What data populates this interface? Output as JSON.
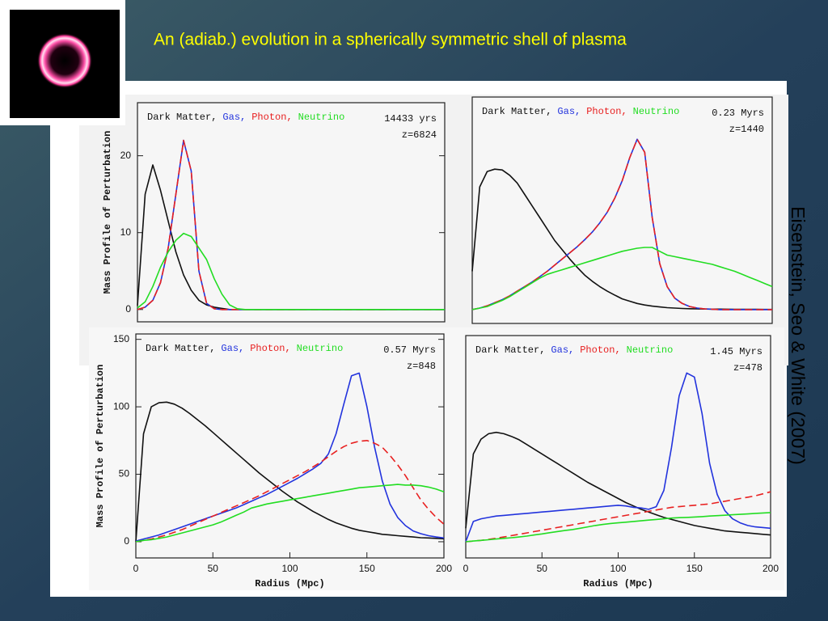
{
  "slide_title": "An (adiab.) evolution in a spherically symmetric shell of plasma",
  "citation": "Eisenstein, Seo & White (2007)",
  "chart_data": [
    {
      "type": "line",
      "annotations": [
        "14433 yrs",
        "z=6824"
      ],
      "ylabel": "Mass Profile of Perturbation",
      "xlim": [
        0,
        200
      ],
      "ylim": [
        -1.6,
        26.9
      ],
      "yticks": [
        0,
        10,
        20
      ],
      "x": [
        0,
        5,
        10,
        15,
        20,
        25,
        30,
        35,
        40,
        45,
        50,
        55,
        60,
        65,
        70,
        75,
        80,
        85,
        90,
        95,
        100,
        105,
        110,
        115,
        120,
        125,
        130,
        135,
        140,
        145,
        150,
        155,
        160,
        165,
        170,
        175,
        180,
        185,
        190,
        195,
        200
      ],
      "series": [
        {
          "name": "Dark Matter,",
          "color": "#111111",
          "values": [
            0.5,
            15,
            18.8,
            15.5,
            11.5,
            7.5,
            4.5,
            2.5,
            1.2,
            0.6,
            0.3,
            0.15,
            0,
            0,
            0,
            0,
            0,
            0,
            0,
            0,
            0,
            0,
            0,
            0,
            0,
            0,
            0,
            0,
            0,
            0,
            0,
            0,
            0,
            0,
            0,
            0,
            0,
            0,
            0,
            0,
            0
          ]
        },
        {
          "name": "Gas,",
          "color": "#2233dd",
          "values": [
            0,
            0.3,
            1.2,
            3.5,
            8,
            15,
            22,
            18,
            5,
            0.8,
            0.1,
            0,
            0,
            0,
            0,
            0,
            0,
            0,
            0,
            0,
            0,
            0,
            0,
            0,
            0,
            0,
            0,
            0,
            0,
            0,
            0,
            0,
            0,
            0,
            0,
            0,
            0,
            0,
            0,
            0,
            0
          ]
        },
        {
          "name": "Photon,",
          "color": "#e82020",
          "dashed": true,
          "values": [
            0,
            0.3,
            1.2,
            3.5,
            8,
            15,
            22,
            18,
            5,
            0.8,
            0.1,
            0,
            0,
            0,
            0,
            0,
            0,
            0,
            0,
            0,
            0,
            0,
            0,
            0,
            0,
            0,
            0,
            0,
            0,
            0,
            0,
            0,
            0,
            0,
            0,
            0,
            0,
            0,
            0,
            0,
            0
          ]
        },
        {
          "name": "Neutrino",
          "color": "#22dd22",
          "values": [
            0.2,
            1,
            3,
            5.5,
            7.5,
            9,
            9.9,
            9.5,
            8,
            6.5,
            4,
            2,
            0.6,
            0.1,
            0,
            0,
            0,
            0,
            0,
            0,
            0,
            0,
            0,
            0,
            0,
            0,
            0,
            0,
            0,
            0,
            0,
            0,
            0,
            0,
            0,
            0,
            0,
            0,
            0,
            0,
            0
          ]
        }
      ]
    },
    {
      "type": "line",
      "annotations": [
        "0.23 Myrs",
        "z=1440"
      ],
      "xlim": [
        0,
        200
      ],
      "ylim": [
        -1.8,
        27.7
      ],
      "x": [
        0,
        5,
        10,
        15,
        20,
        25,
        30,
        35,
        40,
        45,
        50,
        55,
        60,
        65,
        70,
        75,
        80,
        85,
        90,
        95,
        100,
        105,
        110,
        115,
        120,
        125,
        130,
        135,
        140,
        145,
        150,
        155,
        160,
        165,
        170,
        175,
        180,
        185,
        190,
        195,
        200
      ],
      "series": [
        {
          "name": "Dark Matter,",
          "color": "#111111",
          "values": [
            5,
            16,
            18,
            18.3,
            18.2,
            17.5,
            16.5,
            15,
            13.5,
            12,
            10.5,
            9,
            7.8,
            6.6,
            5.5,
            4.5,
            3.7,
            3,
            2.4,
            1.9,
            1.4,
            1.1,
            0.8,
            0.6,
            0.45,
            0.35,
            0.25,
            0.2,
            0.15,
            0.12,
            0.1,
            0.08,
            0.07,
            0.06,
            0.05,
            0.04,
            0.04,
            0.03,
            0.03,
            0.02,
            0.02
          ]
        },
        {
          "name": "Gas,",
          "color": "#2233dd",
          "values": [
            0,
            0.2,
            0.5,
            0.9,
            1.3,
            1.8,
            2.4,
            3,
            3.6,
            4.3,
            5,
            5.8,
            6.6,
            7.4,
            8.2,
            9.1,
            10.1,
            11.3,
            12.7,
            14.5,
            16.8,
            19.8,
            22.2,
            20.5,
            12,
            6,
            3,
            1.5,
            0.8,
            0.4,
            0.2,
            0.1,
            0.05,
            0,
            0,
            0,
            0,
            0,
            0,
            0,
            0
          ]
        },
        {
          "name": "Photon,",
          "color": "#e82020",
          "dashed": true,
          "values": [
            0,
            0.2,
            0.5,
            0.9,
            1.3,
            1.8,
            2.4,
            3,
            3.6,
            4.3,
            5,
            5.8,
            6.6,
            7.4,
            8.2,
            9.1,
            10.1,
            11.3,
            12.7,
            14.5,
            16.8,
            19.8,
            22.2,
            20.5,
            12,
            6,
            3,
            1.5,
            0.8,
            0.4,
            0.2,
            0.1,
            0.05,
            0,
            0,
            0,
            0,
            0,
            0,
            0,
            0
          ]
        },
        {
          "name": "Neutrino",
          "color": "#22dd22",
          "values": [
            0,
            0.2,
            0.4,
            0.8,
            1.2,
            1.7,
            2.3,
            2.9,
            3.5,
            4.1,
            4.6,
            4.9,
            5.2,
            5.5,
            5.8,
            6.1,
            6.4,
            6.7,
            7,
            7.3,
            7.6,
            7.8,
            8,
            8.1,
            8.1,
            7.6,
            7.1,
            6.9,
            6.7,
            6.5,
            6.3,
            6.1,
            5.9,
            5.6,
            5.3,
            5,
            4.6,
            4.2,
            3.8,
            3.4,
            3
          ]
        }
      ]
    },
    {
      "type": "line",
      "annotations": [
        "0.57 Myrs",
        "z=848"
      ],
      "ylabel": "Mass Profile of Perturbation",
      "xlabel": "Radius (Mpc)",
      "xlim": [
        0,
        200
      ],
      "ylim": [
        -12,
        154
      ],
      "xticks": [
        0,
        50,
        100,
        150,
        200
      ],
      "yticks": [
        0,
        50,
        100,
        150
      ],
      "x": [
        0,
        5,
        10,
        15,
        20,
        25,
        30,
        35,
        40,
        45,
        50,
        55,
        60,
        65,
        70,
        75,
        80,
        85,
        90,
        95,
        100,
        105,
        110,
        115,
        120,
        125,
        130,
        135,
        140,
        145,
        150,
        155,
        160,
        165,
        170,
        175,
        180,
        185,
        190,
        195,
        200
      ],
      "series": [
        {
          "name": "Dark Matter,",
          "color": "#111111",
          "values": [
            0,
            80,
            100,
            103,
            103.5,
            102,
            99,
            95,
            90.5,
            86,
            81,
            76,
            71,
            66,
            61,
            56,
            51,
            46.5,
            42,
            37.5,
            33.5,
            29.5,
            26,
            22.5,
            19.5,
            16.5,
            14,
            12,
            10,
            8.5,
            7.5,
            6.5,
            5.5,
            5,
            4.5,
            4,
            3.5,
            3,
            2.8,
            2.5,
            2.2
          ]
        },
        {
          "name": "Gas,",
          "color": "#2233dd",
          "values": [
            0.5,
            2,
            3.5,
            5,
            7,
            9,
            11,
            13,
            15,
            17,
            19,
            21,
            23,
            25,
            27.5,
            30,
            32.5,
            35,
            38,
            41,
            44,
            47,
            50.5,
            54,
            58,
            65,
            80,
            102,
            123,
            125,
            100,
            70,
            45,
            28,
            18,
            12,
            8,
            6,
            4.5,
            3.5,
            2.8
          ]
        },
        {
          "name": "Photon,",
          "color": "#e82020",
          "dashed": true,
          "values": [
            0,
            1,
            2,
            3.5,
            5,
            7,
            9,
            11.5,
            14,
            16.5,
            19,
            21.5,
            24,
            26.5,
            29,
            31.5,
            34,
            37,
            40,
            43,
            46,
            49,
            52,
            55.5,
            59,
            63,
            67,
            70.5,
            73,
            74.5,
            75,
            73,
            70,
            64,
            57,
            49,
            40,
            31,
            24,
            18,
            13
          ]
        },
        {
          "name": "Neutrino",
          "color": "#22dd22",
          "values": [
            0,
            1,
            1.5,
            2.5,
            3.5,
            5,
            6.5,
            8,
            9.5,
            11,
            12.5,
            14.5,
            17,
            19.5,
            22,
            25,
            26.5,
            28,
            29,
            30,
            31,
            32,
            33,
            34,
            35,
            36,
            37,
            38,
            39,
            40,
            40.5,
            41,
            41.5,
            42,
            42.5,
            42,
            42,
            41.5,
            40.5,
            39,
            37
          ]
        }
      ]
    },
    {
      "type": "line",
      "annotations": [
        "1.45 Myrs",
        "z=478"
      ],
      "xlabel": "Radius (Mpc)",
      "xlim": [
        0,
        200
      ],
      "ylim": [
        -12,
        152.7
      ],
      "xticks": [
        0,
        50,
        100,
        150,
        200
      ],
      "x": [
        0,
        5,
        10,
        15,
        20,
        25,
        30,
        35,
        40,
        45,
        50,
        55,
        60,
        65,
        70,
        75,
        80,
        85,
        90,
        95,
        100,
        105,
        110,
        115,
        120,
        125,
        130,
        135,
        140,
        145,
        150,
        155,
        160,
        165,
        170,
        175,
        180,
        185,
        190,
        195,
        200
      ],
      "series": [
        {
          "name": "Dark Matter,",
          "color": "#111111",
          "values": [
            10,
            65,
            76,
            80,
            81,
            80,
            78,
            75.5,
            72,
            68.5,
            65,
            61.5,
            58,
            54.5,
            51,
            47.5,
            44,
            41,
            38,
            35,
            32,
            29,
            26.5,
            24,
            22,
            20,
            18,
            16.5,
            15,
            13.5,
            12,
            11,
            10,
            9,
            8,
            7.5,
            7,
            6.5,
            6,
            5.5,
            5
          ]
        },
        {
          "name": "Gas,",
          "color": "#2233dd",
          "values": [
            0,
            15,
            17,
            18,
            19,
            19.5,
            20,
            20.5,
            21,
            21.5,
            22,
            22.5,
            23,
            23.5,
            24,
            24.5,
            25,
            25.5,
            26,
            26.5,
            27,
            26.5,
            25.5,
            25,
            24,
            26,
            38,
            70,
            108,
            125,
            122,
            95,
            58,
            35,
            23,
            17,
            14,
            12,
            11,
            10.5,
            10
          ]
        },
        {
          "name": "Photon,",
          "color": "#e82020",
          "dashed": true,
          "values": [
            0,
            0.5,
            1,
            1.8,
            2.6,
            3.5,
            4.5,
            5.5,
            6.5,
            7.5,
            8.5,
            9.5,
            10.5,
            11.5,
            12.5,
            13.5,
            14.5,
            15.5,
            16.5,
            17.5,
            18.5,
            19.5,
            20.5,
            21.5,
            22.5,
            23.5,
            24.5,
            25.5,
            26,
            26.5,
            27,
            27.5,
            28,
            29,
            30,
            31,
            32,
            33,
            34,
            35.5,
            37
          ]
        },
        {
          "name": "Neutrino",
          "color": "#22dd22",
          "values": [
            0,
            0.5,
            1,
            1.5,
            2,
            2.5,
            3,
            3.5,
            4.2,
            5,
            5.8,
            6.7,
            7.5,
            8.3,
            9,
            10,
            11,
            12,
            12.8,
            13.5,
            14,
            14.5,
            15,
            15.5,
            16,
            16.5,
            17,
            17.5,
            17.8,
            18,
            18.3,
            18.6,
            19,
            19.3,
            19.6,
            20,
            20.3,
            20.6,
            21,
            21.3,
            21.6
          ]
        }
      ]
    }
  ]
}
